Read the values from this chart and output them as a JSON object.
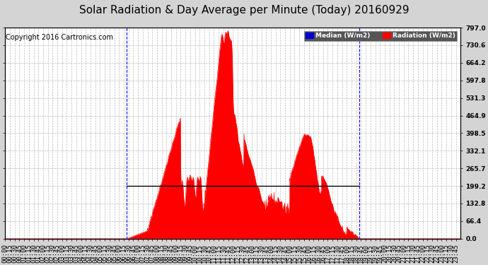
{
  "title": "Solar Radiation & Day Average per Minute (Today) 20160929",
  "copyright": "Copyright 2016 Cartronics.com",
  "yticks": [
    0.0,
    66.4,
    132.8,
    199.2,
    265.7,
    332.1,
    398.5,
    464.9,
    531.3,
    597.8,
    664.2,
    730.6,
    797.0
  ],
  "ymax": 797.0,
  "ymin": 0.0,
  "background_color": "#d4d4d4",
  "plot_bg_color": "#ffffff",
  "grid_color": "#aaaaaa",
  "radiation_color": "#ff0000",
  "median_line_color": "#000000",
  "blue_color": "#0000ff",
  "median_value": 199.2,
  "sunrise_min": 385,
  "sunset_min": 1120,
  "total_minutes": 1440,
  "legend_median_label": "Median (W/m2)",
  "legend_radiation_label": "Radiation (W/m2)",
  "title_fontsize": 11,
  "tick_fontsize": 6.5,
  "copyright_fontsize": 7
}
